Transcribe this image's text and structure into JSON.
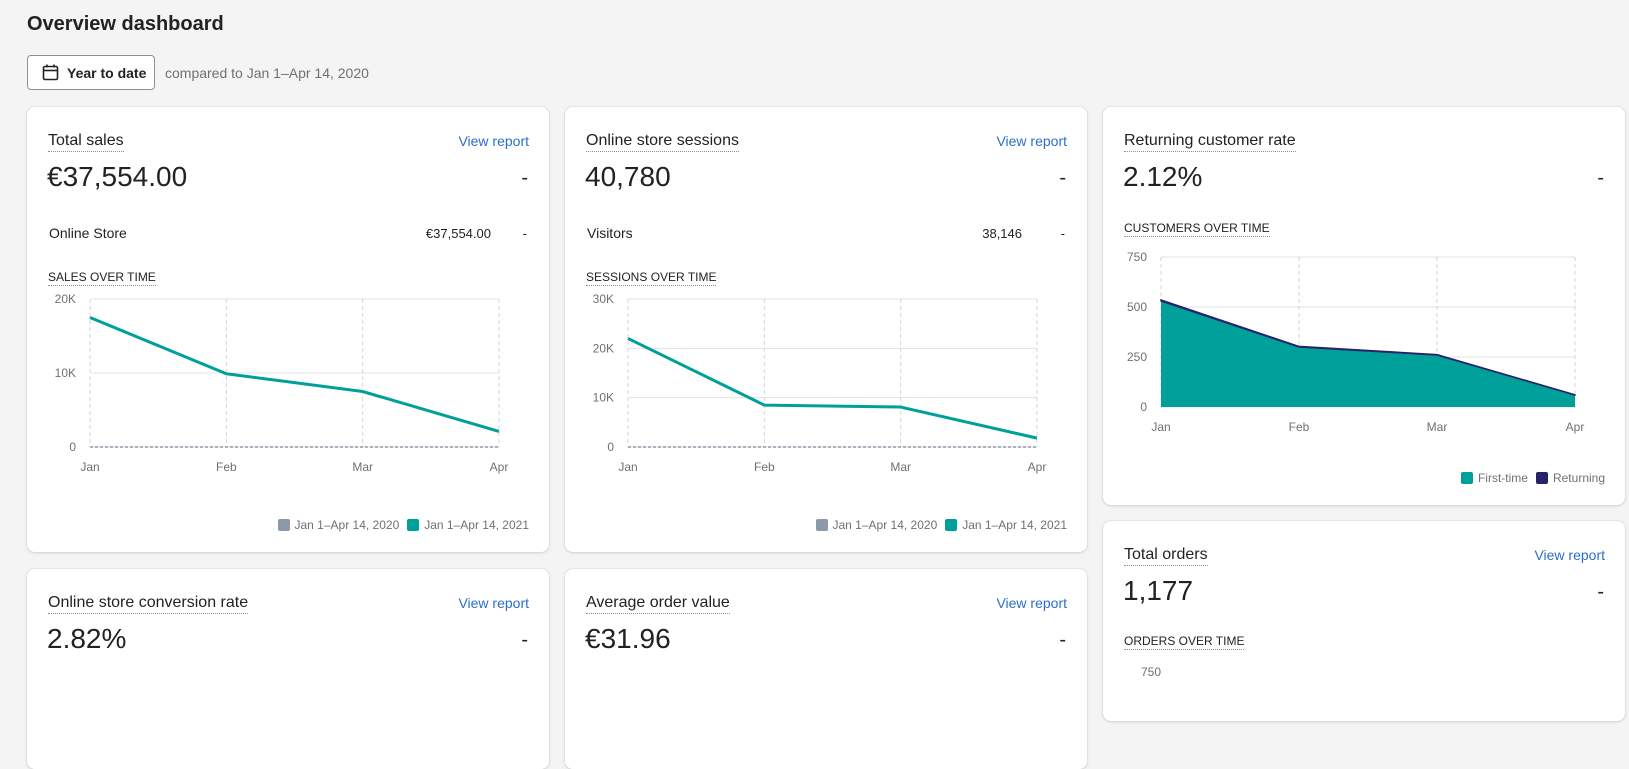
{
  "page": {
    "title": "Overview dashboard",
    "date_button": "Year to date",
    "compare_text": "compared to Jan 1–Apr 14, 2020"
  },
  "colors": {
    "teal": "#00a09a",
    "gray": "#8c9aa8",
    "navy": "#27236b",
    "link": "#2c6ecb"
  },
  "cards": {
    "total_sales": {
      "title": "Total sales",
      "view_report": "View report",
      "value": "€37,554.00",
      "change": "-",
      "row": {
        "label": "Online Store",
        "value": "€37,554.00",
        "change": "-"
      },
      "section": "SALES OVER TIME",
      "legend": [
        "Jan 1–Apr 14, 2020",
        "Jan 1–Apr 14, 2021"
      ]
    },
    "sessions": {
      "title": "Online store sessions",
      "view_report": "View report",
      "value": "40,780",
      "change": "-",
      "row": {
        "label": "Visitors",
        "value": "38,146",
        "change": "-"
      },
      "section": "SESSIONS OVER TIME",
      "legend": [
        "Jan 1–Apr 14, 2020",
        "Jan 1–Apr 14, 2021"
      ]
    },
    "returning": {
      "title": "Returning customer rate",
      "value": "2.12%",
      "change": "-",
      "section": "CUSTOMERS OVER TIME",
      "legend": [
        "First-time",
        "Returning"
      ]
    },
    "total_orders": {
      "title": "Total orders",
      "view_report": "View report",
      "value": "1,177",
      "change": "-",
      "section": "ORDERS OVER TIME",
      "partial_tick": "750"
    },
    "conversion": {
      "title": "Online store conversion rate",
      "view_report": "View report",
      "value": "2.82%",
      "change": "-"
    },
    "aov": {
      "title": "Average order value",
      "view_report": "View report",
      "value": "€31.96",
      "change": "-"
    }
  },
  "chart_data": [
    {
      "id": "sales",
      "type": "line",
      "categories": [
        "Jan",
        "Feb",
        "Mar",
        "Apr"
      ],
      "y_ticks": [
        0,
        10000,
        20000
      ],
      "y_tick_labels": [
        "0",
        "10K",
        "20K"
      ],
      "ylim": [
        0,
        20000
      ],
      "series": [
        {
          "name": "Jan 1–Apr 14, 2020",
          "values": [
            0,
            0,
            0,
            0
          ],
          "color": "#8c9aa8",
          "dashed": true
        },
        {
          "name": "Jan 1–Apr 14, 2021",
          "values": [
            17500,
            9900,
            7500,
            2100
          ],
          "color": "#00a09a"
        }
      ],
      "grid": true,
      "legend": "bottom-right"
    },
    {
      "id": "sessions",
      "type": "line",
      "categories": [
        "Jan",
        "Feb",
        "Mar",
        "Apr"
      ],
      "y_ticks": [
        0,
        10000,
        20000,
        30000
      ],
      "y_tick_labels": [
        "0",
        "10K",
        "20K",
        "30K"
      ],
      "ylim": [
        0,
        30000
      ],
      "series": [
        {
          "name": "Jan 1–Apr 14, 2020",
          "values": [
            0,
            0,
            0,
            0
          ],
          "color": "#8c9aa8",
          "dashed": true
        },
        {
          "name": "Jan 1–Apr 14, 2021",
          "values": [
            22000,
            8500,
            8100,
            1800
          ],
          "color": "#00a09a"
        }
      ],
      "grid": true,
      "legend": "bottom-right"
    },
    {
      "id": "customers",
      "type": "area",
      "categories": [
        "Jan",
        "Feb",
        "Mar",
        "Apr"
      ],
      "y_ticks": [
        0,
        250,
        500,
        750
      ],
      "y_tick_labels": [
        "0",
        "250",
        "500",
        "750"
      ],
      "ylim": [
        0,
        750
      ],
      "series": [
        {
          "name": "First-time",
          "values": [
            530,
            300,
            260,
            60
          ],
          "color": "#00a09a"
        },
        {
          "name": "Returning",
          "values": [
            5,
            3,
            2,
            1
          ],
          "color": "#27236b"
        }
      ],
      "stacked": true,
      "grid": true,
      "legend": "bottom-right"
    }
  ]
}
